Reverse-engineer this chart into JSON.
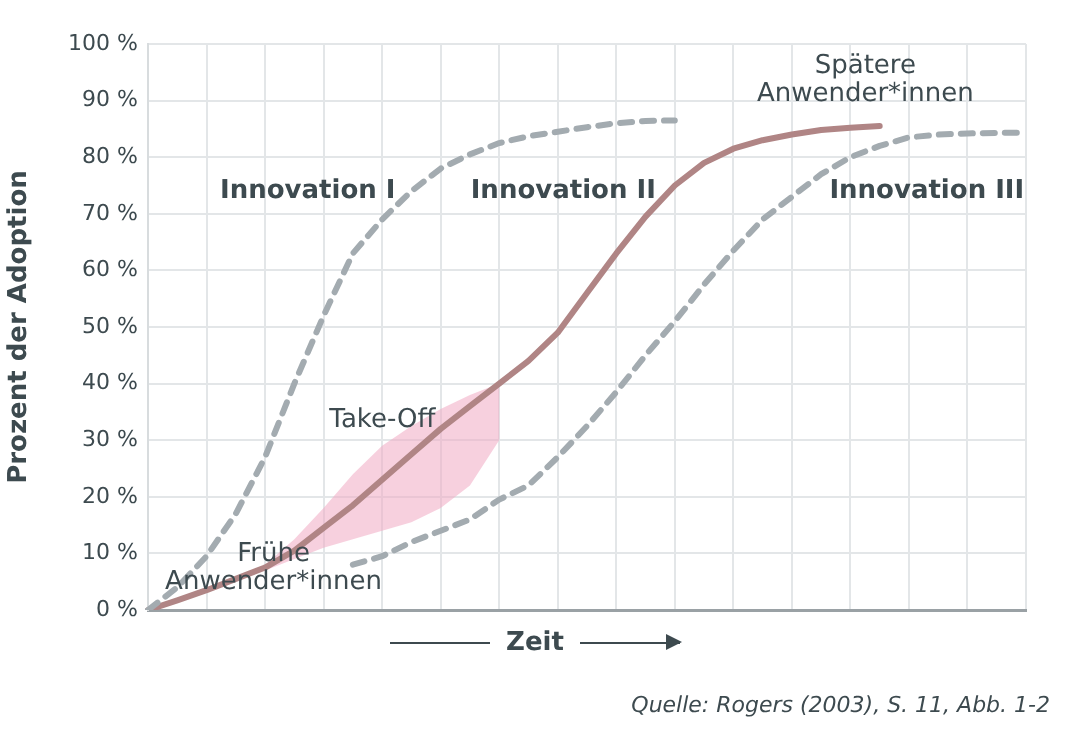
{
  "chart_data": {
    "type": "line",
    "xlabel": "Zeit",
    "ylabel": "Prozent der Adoption",
    "categories": [
      null,
      null,
      null,
      null,
      null,
      null,
      null,
      null,
      null,
      null,
      null,
      null,
      null,
      null,
      null,
      null,
      null,
      null,
      null,
      null,
      null,
      null,
      null,
      null,
      null,
      null,
      null,
      null,
      null,
      null,
      null
    ],
    "ylim": [
      0,
      100
    ],
    "yticks": [
      {
        "value": 0,
        "label": "0 %"
      },
      {
        "value": 10,
        "label": "10 %"
      },
      {
        "value": 20,
        "label": "20 %"
      },
      {
        "value": 30,
        "label": "30 %"
      },
      {
        "value": 40,
        "label": "40 %"
      },
      {
        "value": 50,
        "label": "50 %"
      },
      {
        "value": 60,
        "label": "60 %"
      },
      {
        "value": 70,
        "label": "70 %"
      },
      {
        "value": 80,
        "label": "80 %"
      },
      {
        "value": 90,
        "label": "90 %"
      },
      {
        "value": 100,
        "label": "100 %"
      }
    ],
    "grid": true,
    "legend": false,
    "tick_labels": "y",
    "marker": "none",
    "series": [
      {
        "name": "Innovation I",
        "color": "#a3abb0",
        "line_style": "dashed",
        "values": [
          0,
          4,
          9.5,
          17,
          27,
          40,
          52,
          63,
          69,
          74,
          78,
          80.5,
          82.5,
          83.7,
          84.5,
          85.3,
          86,
          86.4,
          86.5,
          null,
          null,
          null,
          null,
          null,
          null,
          null,
          null,
          null,
          null,
          null,
          null
        ]
      },
      {
        "name": "Innovation II",
        "color": "#b08585",
        "line_style": "solid",
        "values": [
          0,
          1.7,
          3.5,
          5.5,
          7.5,
          10.5,
          14.5,
          18.5,
          23,
          27.5,
          32,
          36,
          40,
          44,
          49,
          56,
          63,
          69.5,
          75,
          79,
          81.5,
          83,
          84,
          84.8,
          85.2,
          85.5,
          null,
          null,
          null,
          null,
          null
        ],
        "lower": [
          null,
          null,
          null,
          null,
          7,
          9,
          11,
          12.5,
          14,
          15.5,
          18,
          22,
          30,
          null,
          null,
          null,
          null,
          null,
          null,
          null,
          null,
          null,
          null,
          null,
          null,
          null,
          null,
          null,
          null,
          null,
          null
        ],
        "upper": [
          null,
          null,
          null,
          null,
          8,
          12.5,
          18,
          24,
          29,
          32.5,
          35.5,
          38,
          40,
          null,
          null,
          null,
          null,
          null,
          null,
          null,
          null,
          null,
          null,
          null,
          null,
          null,
          null,
          null,
          null,
          null,
          null
        ]
      },
      {
        "name": "Innovation III",
        "color": "#a3abb0",
        "line_style": "dashed",
        "values": [
          null,
          null,
          null,
          null,
          null,
          null,
          null,
          8,
          9.5,
          12,
          14,
          16,
          19.5,
          22,
          27,
          32.5,
          38.5,
          45,
          51,
          57.5,
          63.5,
          69,
          73,
          77,
          80,
          82,
          83.5,
          84,
          84.2,
          84.3,
          84.3
        ]
      }
    ],
    "annotations": [
      "Take-Off",
      "Frühe\nAnwender*innen",
      "Spätere\nAnwender*innen",
      "Quelle: Rogers (2003), S. 11, Abb. 1-2"
    ]
  }
}
